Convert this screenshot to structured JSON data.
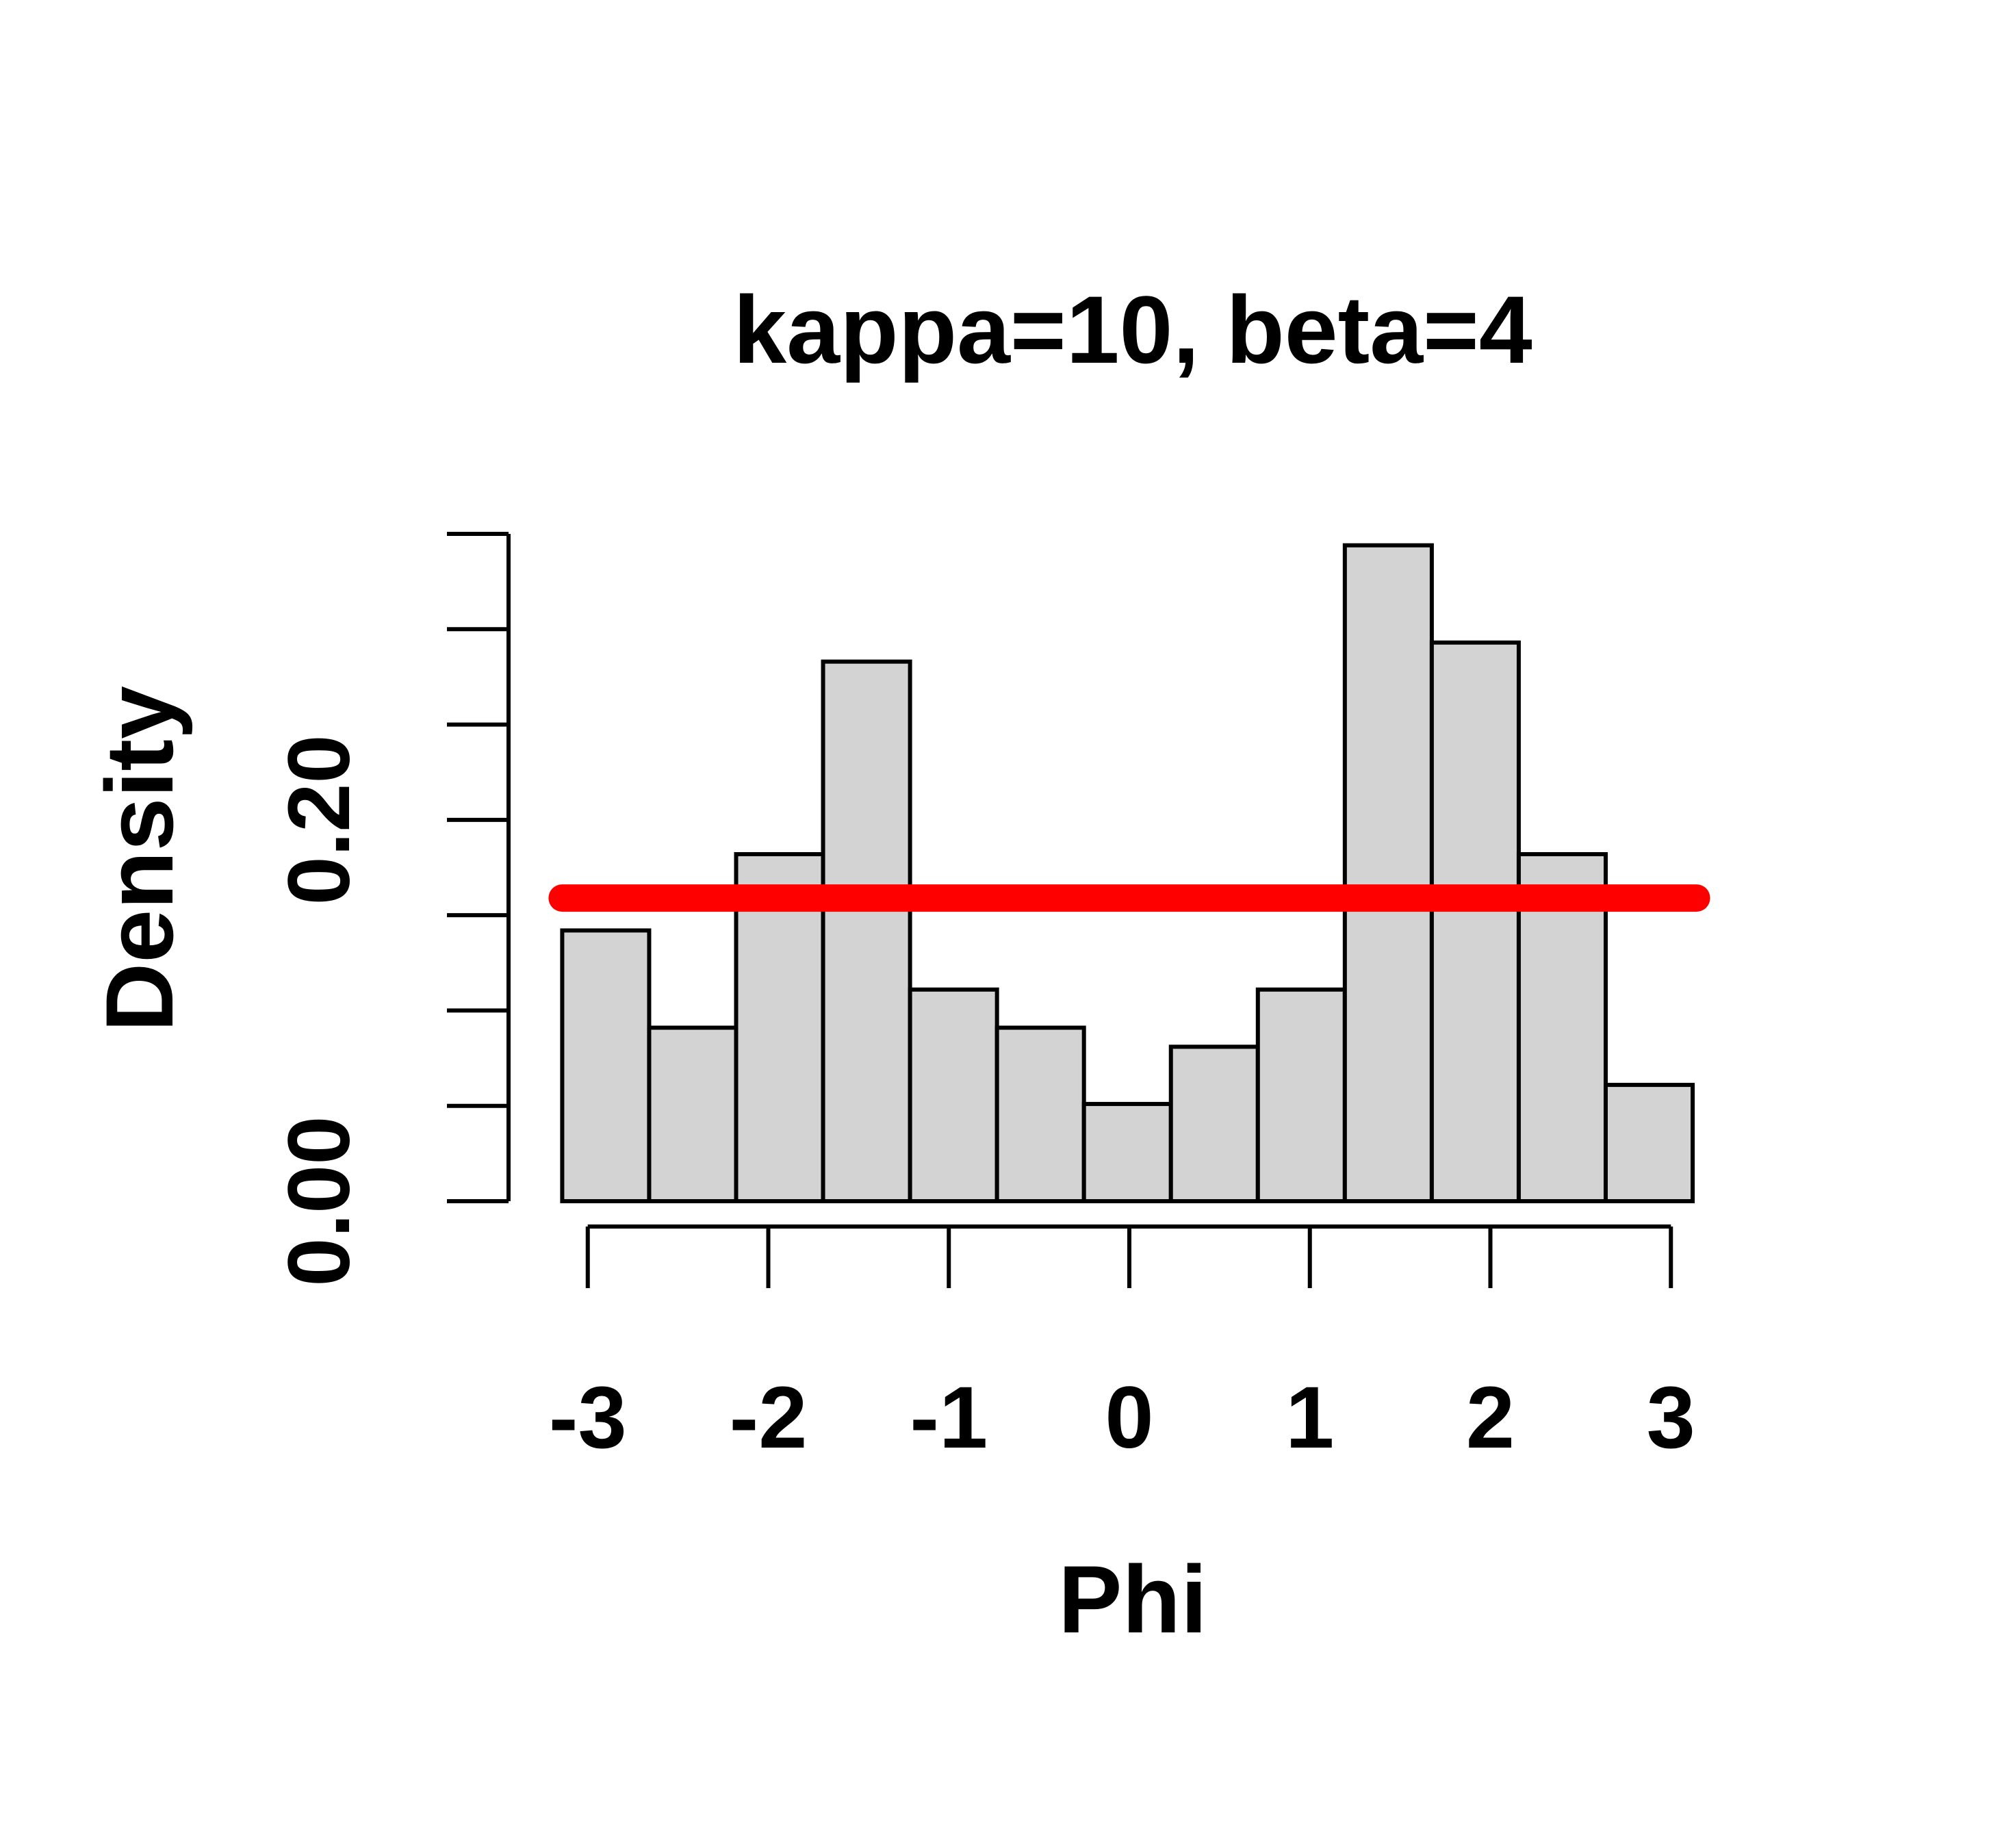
{
  "chart_data": {
    "type": "bar",
    "title": "kappa=10, beta=4",
    "xlabel": "Phi",
    "ylabel": "Density",
    "bins": [
      {
        "x0": -3.1416,
        "x1": -2.6599,
        "density": 0.142
      },
      {
        "x0": -2.6599,
        "x1": -2.1782,
        "density": 0.091
      },
      {
        "x0": -2.1782,
        "x1": -1.6965,
        "density": 0.182
      },
      {
        "x0": -1.6965,
        "x1": -1.2148,
        "density": 0.283
      },
      {
        "x0": -1.2148,
        "x1": -0.7331,
        "density": 0.111
      },
      {
        "x0": -0.7331,
        "x1": -0.2514,
        "density": 0.091
      },
      {
        "x0": -0.2514,
        "x1": 0.2303,
        "density": 0.051
      },
      {
        "x0": 0.2303,
        "x1": 0.712,
        "density": 0.081
      },
      {
        "x0": 0.712,
        "x1": 1.1937,
        "density": 0.111
      },
      {
        "x0": 1.1937,
        "x1": 1.6754,
        "density": 0.344
      },
      {
        "x0": 1.6754,
        "x1": 2.1571,
        "density": 0.293
      },
      {
        "x0": 2.1571,
        "x1": 2.6388,
        "density": 0.182
      },
      {
        "x0": 2.6388,
        "x1": 3.1205,
        "density": 0.061
      }
    ],
    "reference_line": {
      "y": 0.159,
      "x_from": -3.1416,
      "x_to": 3.1416,
      "color": "#ff0000"
    },
    "bar_fill": "#d3d3d3",
    "bar_stroke": "#000000",
    "xlim": [
      -3.2,
      3.2
    ],
    "ylim": [
      0.0,
      0.35
    ],
    "x_ticks": [
      -3,
      -2,
      -1,
      0,
      1,
      2,
      3
    ],
    "x_tick_labels": [
      "-3",
      "-2",
      "-1",
      "0",
      "1",
      "2",
      "3"
    ],
    "y_ticks": [
      0.0,
      0.05,
      0.1,
      0.15,
      0.2,
      0.25,
      0.3,
      0.35
    ],
    "y_tick_labels": [
      {
        "value": 0.0,
        "label": "0.00"
      },
      {
        "value": 0.2,
        "label": "0.20"
      }
    ],
    "grid": false,
    "legend": "none"
  }
}
